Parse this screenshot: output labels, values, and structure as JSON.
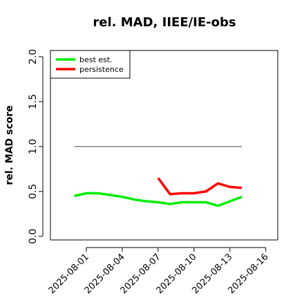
{
  "chart_data": {
    "type": "line",
    "title": "rel. MAD, IIEE/IE-obs",
    "y_label": "rel. MAD score",
    "x": [
      "2025-07-31",
      "2025-08-01",
      "2025-08-02",
      "2025-08-03",
      "2025-08-04",
      "2025-08-05",
      "2025-08-06",
      "2025-08-07",
      "2025-08-08",
      "2025-08-09",
      "2025-08-10",
      "2025-08-11",
      "2025-08-12",
      "2025-08-13",
      "2025-08-14"
    ],
    "series": [
      {
        "name": "best est.",
        "color": "#00ee00",
        "values": [
          0.45,
          0.48,
          0.48,
          0.46,
          0.44,
          0.41,
          0.39,
          0.38,
          0.36,
          0.38,
          0.38,
          0.38,
          0.34,
          0.39,
          0.44
        ]
      },
      {
        "name": "persistence",
        "color": "#ff0000",
        "values": [
          null,
          null,
          null,
          null,
          null,
          null,
          null,
          0.65,
          0.47,
          0.48,
          0.48,
          0.5,
          0.59,
          0.55,
          0.54
        ]
      }
    ],
    "reference_line": {
      "value": 1.0,
      "color": "#808080"
    },
    "xlim": [
      "2025-07-29",
      "2025-08-17"
    ],
    "xticks": [
      "2025-08-01",
      "2025-08-04",
      "2025-08-07",
      "2025-08-10",
      "2025-08-13",
      "2025-08-16"
    ],
    "ylim": [
      -0.04,
      2.07
    ],
    "yticks": [
      {
        "value": 0,
        "label": "0.0"
      },
      {
        "value": 0.5,
        "label": "0.5"
      },
      {
        "value": 1,
        "label": "1.0"
      },
      {
        "value": 1.5,
        "label": "1.5"
      },
      {
        "value": 2,
        "label": "2.0"
      }
    ],
    "legend": "top-left"
  }
}
